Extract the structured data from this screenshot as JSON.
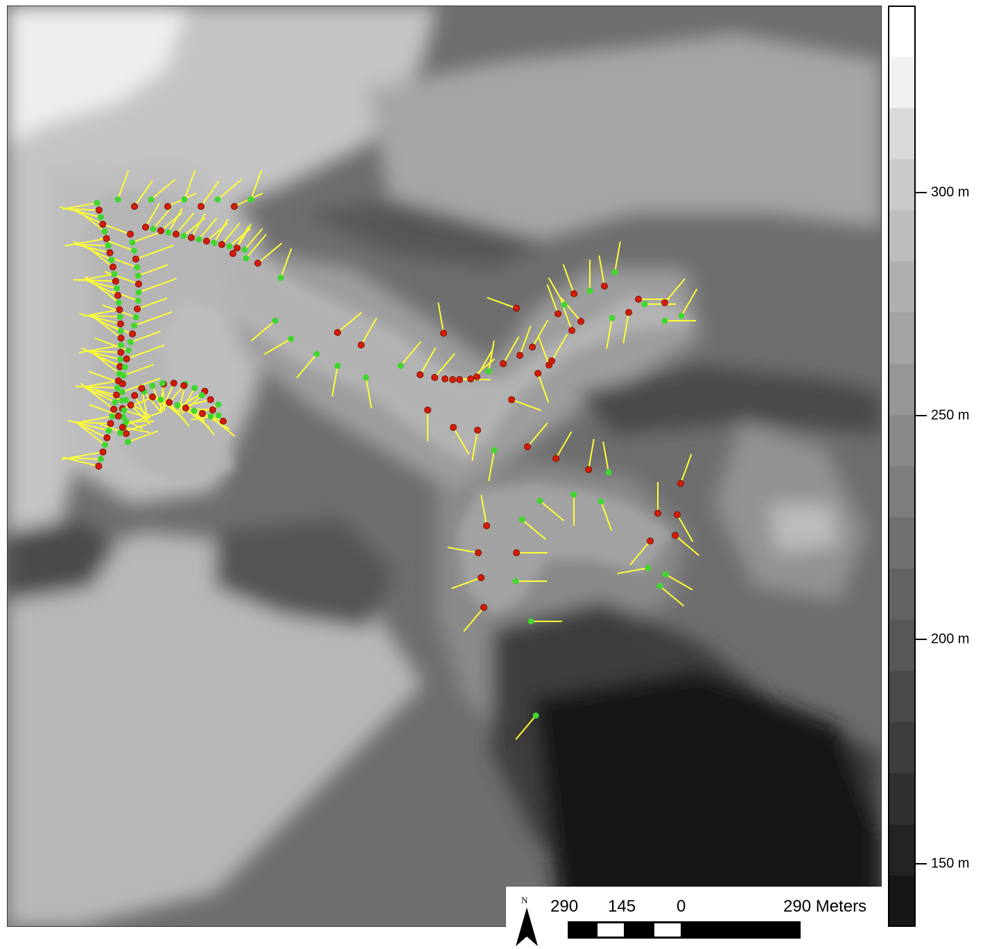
{
  "legend": {
    "ticks": [
      "300 m",
      "250 m",
      "200 m",
      "150 m"
    ],
    "tick_elevations_m": [
      300,
      250,
      200,
      150
    ]
  },
  "scale_bar": {
    "north_label": "N",
    "labels": [
      "290",
      "145",
      "0",
      "290 Meters"
    ]
  },
  "colors": {
    "observation_point_red": "#d41b08",
    "observation_point_green": "#3fd62e",
    "direction_vector": "#ffff33"
  }
}
